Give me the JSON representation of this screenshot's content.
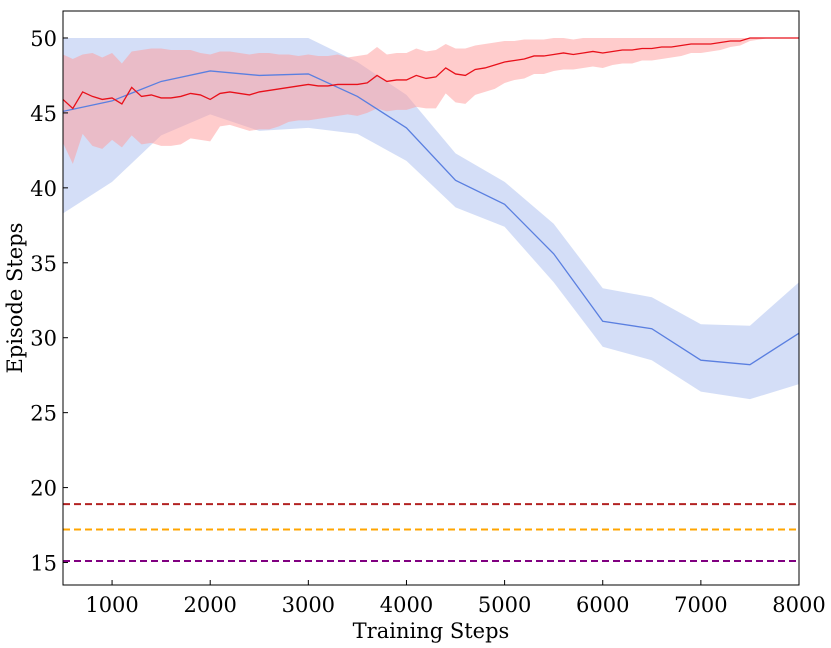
{
  "chart_data": {
    "type": "line",
    "title": "",
    "xlabel": "Training Steps",
    "ylabel": "Episode Steps",
    "xlim": [
      500,
      8000
    ],
    "ylim": [
      13.5,
      51.8
    ],
    "xticks": [
      1000,
      2000,
      3000,
      4000,
      5000,
      6000,
      7000,
      8000
    ],
    "yticks": [
      15,
      20,
      25,
      30,
      35,
      40,
      45,
      50
    ],
    "grid": false,
    "legend": "none",
    "colors": {
      "red_line": "#e8101a",
      "red_band": "#ff9999",
      "blue_line": "#5a7fe0",
      "blue_band": "#a9bdf0",
      "dashed_brown": "#b22222",
      "dashed_orange": "#ffa500",
      "dashed_purple": "#800080"
    },
    "series": [
      {
        "name": "red",
        "x": [
          500,
          600,
          700,
          800,
          900,
          1000,
          1100,
          1200,
          1300,
          1400,
          1500,
          1600,
          1700,
          1800,
          1900,
          2000,
          2100,
          2200,
          2300,
          2400,
          2500,
          2600,
          2700,
          2800,
          2900,
          3000,
          3100,
          3200,
          3300,
          3400,
          3500,
          3600,
          3700,
          3800,
          3900,
          4000,
          4100,
          4200,
          4300,
          4400,
          4500,
          4600,
          4700,
          4800,
          4900,
          5000,
          5100,
          5200,
          5300,
          5400,
          5500,
          5600,
          5700,
          5800,
          5900,
          6000,
          6100,
          6200,
          6300,
          6400,
          6500,
          6600,
          6700,
          6800,
          6900,
          7000,
          7100,
          7200,
          7300,
          7400,
          7500,
          7600,
          7700,
          7800,
          7900,
          8000
        ],
        "y": [
          45.9,
          45.3,
          46.4,
          46.1,
          45.9,
          46.0,
          45.6,
          46.7,
          46.1,
          46.2,
          46.0,
          46.0,
          46.1,
          46.3,
          46.2,
          45.9,
          46.3,
          46.4,
          46.3,
          46.2,
          46.4,
          46.5,
          46.6,
          46.7,
          46.8,
          46.9,
          46.8,
          46.8,
          46.9,
          46.9,
          46.9,
          47.0,
          47.5,
          47.1,
          47.2,
          47.2,
          47.5,
          47.3,
          47.4,
          48.0,
          47.6,
          47.5,
          47.9,
          48.0,
          48.2,
          48.4,
          48.5,
          48.6,
          48.8,
          48.8,
          48.9,
          49.0,
          48.9,
          49.0,
          49.1,
          49.0,
          49.1,
          49.2,
          49.2,
          49.3,
          49.3,
          49.4,
          49.4,
          49.5,
          49.6,
          49.6,
          49.6,
          49.7,
          49.8,
          49.8,
          50.0,
          50.0,
          50.0,
          50.0,
          50.0,
          50.0
        ],
        "upper": [
          48.9,
          48.6,
          48.9,
          49.0,
          48.7,
          49.0,
          48.3,
          49.1,
          49.2,
          49.3,
          49.3,
          49.2,
          49.2,
          49.2,
          49.0,
          48.9,
          49.1,
          49.1,
          49.0,
          48.9,
          49.0,
          49.0,
          48.9,
          48.9,
          48.8,
          48.9,
          48.8,
          48.8,
          48.9,
          48.7,
          48.8,
          48.9,
          49.4,
          48.9,
          49.0,
          49.0,
          49.3,
          49.1,
          49.2,
          49.6,
          49.3,
          49.3,
          49.5,
          49.6,
          49.7,
          49.8,
          49.8,
          49.9,
          49.9,
          49.9,
          50.0,
          50.0,
          49.9,
          50.0,
          50.0,
          50.0,
          50.0,
          50.0,
          50.0,
          50.0,
          50.0,
          50.0,
          50.0,
          50.0,
          50.0,
          50.0,
          50.0,
          50.0,
          50.0,
          50.0,
          50.0,
          50.0,
          50.0,
          50.0,
          50.0,
          50.0
        ],
        "lower": [
          43.0,
          41.6,
          43.6,
          42.8,
          42.6,
          43.2,
          42.7,
          43.5,
          42.9,
          43.0,
          42.8,
          42.8,
          42.9,
          43.3,
          43.2,
          43.1,
          44.1,
          44.2,
          44.0,
          43.8,
          43.9,
          43.9,
          44.1,
          44.4,
          44.5,
          44.5,
          44.6,
          44.7,
          44.8,
          44.9,
          44.8,
          45.0,
          45.3,
          45.1,
          45.2,
          45.2,
          45.4,
          45.3,
          45.3,
          46.3,
          45.7,
          45.6,
          46.2,
          46.4,
          46.6,
          47.0,
          47.2,
          47.3,
          47.6,
          47.6,
          47.8,
          47.9,
          47.9,
          48.0,
          48.1,
          48.0,
          48.2,
          48.3,
          48.3,
          48.5,
          48.5,
          48.6,
          48.7,
          48.8,
          49.0,
          49.0,
          49.1,
          49.2,
          49.4,
          49.5,
          49.8,
          49.9,
          50.0,
          50.0,
          50.0,
          50.0
        ]
      },
      {
        "name": "blue",
        "x": [
          500,
          1000,
          1500,
          2000,
          2500,
          3000,
          3500,
          4000,
          4500,
          5000,
          5500,
          6000,
          6500,
          7000,
          7500,
          8000
        ],
        "y": [
          45.1,
          45.8,
          47.1,
          47.8,
          47.5,
          47.6,
          46.1,
          44.0,
          40.5,
          38.9,
          35.6,
          31.1,
          30.6,
          28.5,
          28.2,
          30.3
        ],
        "upper": [
          50.0,
          50.0,
          50.0,
          50.0,
          50.0,
          50.0,
          48.4,
          46.2,
          42.3,
          40.4,
          37.6,
          33.3,
          32.7,
          30.9,
          30.8,
          33.7
        ],
        "lower": [
          38.3,
          40.4,
          43.5,
          44.9,
          43.8,
          44.0,
          43.6,
          41.8,
          38.7,
          37.4,
          33.7,
          29.4,
          28.5,
          26.4,
          25.9,
          26.9
        ]
      }
    ],
    "hlines": [
      {
        "name": "dashed-brown",
        "y": 18.9
      },
      {
        "name": "dashed-orange",
        "y": 17.2
      },
      {
        "name": "dashed-purple",
        "y": 15.1
      }
    ]
  }
}
